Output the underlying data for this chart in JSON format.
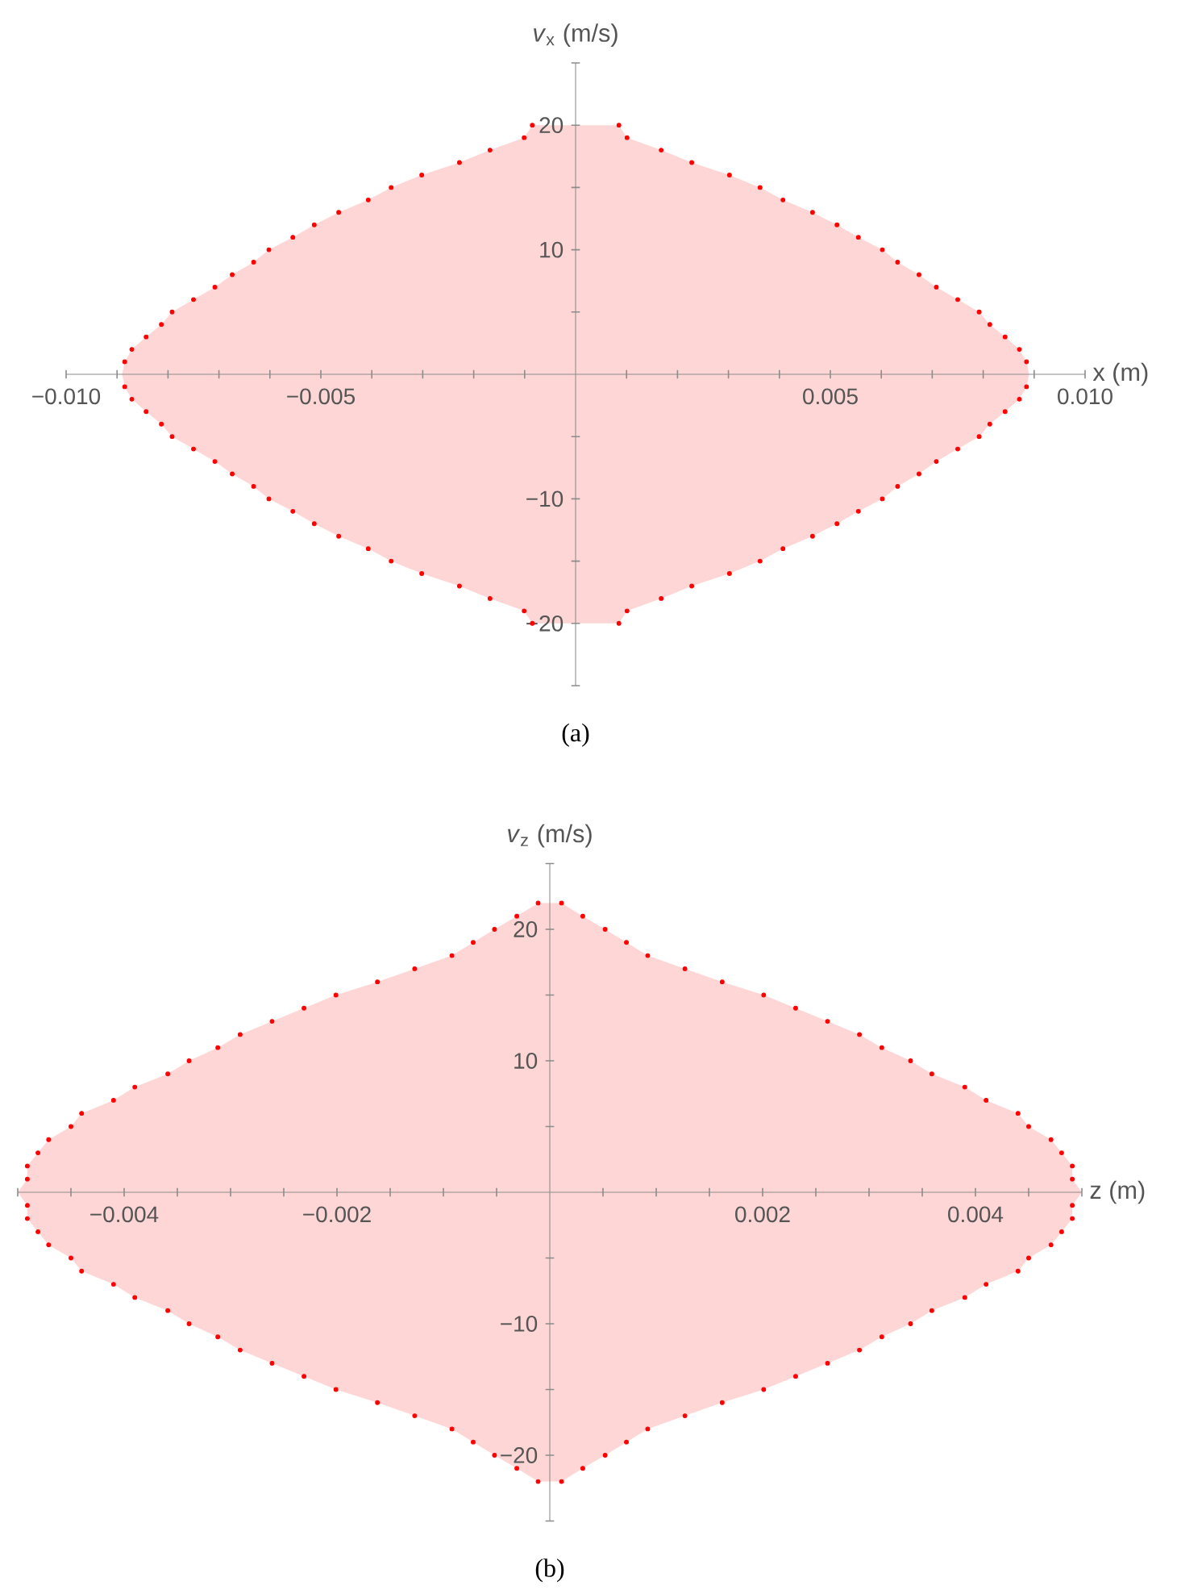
{
  "chart_data": [
    {
      "type": "scatter",
      "title": "(a)",
      "xlabel": "x (m)",
      "ylabel": "*v*$_{x}$ (m/s)",
      "xlim": [
        -0.01,
        0.01
      ],
      "ylim": [
        -25,
        25
      ],
      "xticks": [
        {
          "value": -0.01,
          "label": "−0.010"
        },
        {
          "value": -0.009,
          "label": null
        },
        {
          "value": -0.008,
          "label": null
        },
        {
          "value": -0.007,
          "label": null
        },
        {
          "value": -0.006,
          "label": null
        },
        {
          "value": -0.005,
          "label": "−0.005"
        },
        {
          "value": -0.004,
          "label": null
        },
        {
          "value": -0.003,
          "label": null
        },
        {
          "value": -0.002,
          "label": null
        },
        {
          "value": -0.001,
          "label": null
        },
        {
          "value": 0.001,
          "label": null
        },
        {
          "value": 0.002,
          "label": null
        },
        {
          "value": 0.003,
          "label": null
        },
        {
          "value": 0.004,
          "label": null
        },
        0.005,
        {
          "value": 0.006,
          "label": null
        },
        {
          "value": 0.007,
          "label": null
        },
        {
          "value": 0.008,
          "label": null
        },
        {
          "value": 0.009,
          "label": null
        },
        {
          "value": 0.01,
          "label": "0.010"
        }
      ],
      "yticks": [
        {
          "value": -25,
          "label": null
        },
        {
          "value": -20,
          "label": "−20"
        },
        {
          "value": -15,
          "label": null
        },
        {
          "value": -10,
          "label": "−10"
        },
        {
          "value": -5,
          "label": null
        },
        {
          "value": 5,
          "label": null
        },
        10,
        {
          "value": 15,
          "label": null
        },
        20,
        {
          "value": 25,
          "label": null
        }
      ],
      "series": [
        {
          "type": "area",
          "color": "#ffd6d6",
          "x": [
            -0.0089,
            -0.00885,
            -0.00871,
            -0.00843,
            -0.00813,
            -0.00792,
            -0.0075,
            -0.00708,
            -0.00674,
            -0.00632,
            -0.00602,
            -0.00555,
            -0.00513,
            -0.00465,
            -0.00407,
            -0.00362,
            -0.00302,
            -0.00228,
            -0.00168,
            -0.00101,
            -0.00085,
            0.00085,
            0.00101,
            0.00168,
            0.00228,
            0.00302,
            0.00362,
            0.00407,
            0.00465,
            0.00513,
            0.00555,
            0.00602,
            0.00632,
            0.00674,
            0.00708,
            0.0075,
            0.00792,
            0.00813,
            0.00843,
            0.00871,
            0.00885,
            0.0089
          ],
          "values": [
            0,
            1,
            2,
            3,
            4,
            5,
            6,
            7,
            8,
            9,
            10,
            11,
            12,
            13,
            14,
            15,
            16,
            17,
            18,
            19,
            20,
            20,
            19,
            18,
            17,
            16,
            15,
            14,
            13,
            12,
            11,
            10,
            9,
            8,
            7,
            6,
            5,
            4,
            3,
            2,
            1,
            0
          ]
        },
        {
          "type": "area",
          "color": "#ffd6d6",
          "x": [
            -0.0089,
            -0.00885,
            -0.00871,
            -0.00843,
            -0.00813,
            -0.00792,
            -0.0075,
            -0.00708,
            -0.00674,
            -0.00632,
            -0.00602,
            -0.00555,
            -0.00513,
            -0.00465,
            -0.00407,
            -0.00362,
            -0.00302,
            -0.00228,
            -0.00168,
            -0.00101,
            -0.00085,
            0.00085,
            0.00101,
            0.00168,
            0.00228,
            0.00302,
            0.00362,
            0.00407,
            0.00465,
            0.00513,
            0.00555,
            0.00602,
            0.00632,
            0.00674,
            0.00708,
            0.0075,
            0.00792,
            0.00813,
            0.00843,
            0.00871,
            0.00885,
            0.0089
          ],
          "values": [
            0,
            -1,
            -2,
            -3,
            -4,
            -5,
            -6,
            -7,
            -8,
            -9,
            -10,
            -11,
            -12,
            -13,
            -14,
            -15,
            -16,
            -17,
            -18,
            -19,
            -20,
            -20,
            -19,
            -18,
            -17,
            -16,
            -15,
            -14,
            -13,
            -12,
            -11,
            -10,
            -9,
            -8,
            -7,
            -6,
            -5,
            -4,
            -3,
            -2,
            -1,
            0
          ]
        },
        {
          "color": "#ff0000",
          "marker": "circle",
          "x": [
            -0.00885,
            -0.00871,
            -0.00843,
            -0.00813,
            -0.00792,
            -0.0075,
            -0.00708,
            -0.00674,
            -0.00632,
            -0.00602,
            -0.00555,
            -0.00513,
            -0.00465,
            -0.00407,
            -0.00362,
            -0.00302,
            -0.00228,
            -0.00168,
            -0.00101,
            -0.00085,
            0.00885,
            0.00871,
            0.00843,
            0.00813,
            0.00792,
            0.0075,
            0.00708,
            0.00674,
            0.00632,
            0.00602,
            0.00555,
            0.00513,
            0.00465,
            0.00407,
            0.00362,
            0.00302,
            0.00228,
            0.00168,
            0.00101,
            0.00085,
            -0.00885,
            -0.00871,
            -0.00843,
            -0.00813,
            -0.00792,
            -0.0075,
            -0.00708,
            -0.00674,
            -0.00632,
            -0.00602,
            -0.00555,
            -0.00513,
            -0.00465,
            -0.00407,
            -0.00362,
            -0.00302,
            -0.00228,
            -0.00168,
            -0.00101,
            -0.00085,
            0.00885,
            0.00871,
            0.00843,
            0.00813,
            0.00792,
            0.0075,
            0.00708,
            0.00674,
            0.00632,
            0.00602,
            0.00555,
            0.00513,
            0.00465,
            0.00407,
            0.00362,
            0.00302,
            0.00228,
            0.00168,
            0.00101,
            0.00085
          ],
          "values": [
            1,
            2,
            3,
            4,
            5,
            6,
            7,
            8,
            9,
            10,
            11,
            12,
            13,
            14,
            15,
            16,
            17,
            18,
            19,
            20,
            1,
            2,
            3,
            4,
            5,
            6,
            7,
            8,
            9,
            10,
            11,
            12,
            13,
            14,
            15,
            16,
            17,
            18,
            19,
            20,
            -1,
            -2,
            -3,
            -4,
            -5,
            -6,
            -7,
            -8,
            -9,
            -10,
            -11,
            -12,
            -13,
            -14,
            -15,
            -16,
            -17,
            -18,
            -19,
            -20,
            -1,
            -2,
            -3,
            -4,
            -5,
            -6,
            -7,
            -8,
            -9,
            -10,
            -11,
            -12,
            -13,
            -14,
            -15,
            -16,
            -17,
            -18,
            -19,
            -20
          ]
        }
      ]
    },
    {
      "type": "scatter",
      "title": "(b)",
      "xlabel": "z (m)",
      "ylabel": "*v*$_{z}$ (m/s)",
      "xlim": [
        -0.005,
        0.005
      ],
      "ylim": [
        -25,
        25
      ],
      "xticks": [
        {
          "value": -0.005,
          "label": null
        },
        {
          "value": -0.0045,
          "label": null
        },
        {
          "value": -0.004,
          "label": "−0.004"
        },
        {
          "value": -0.0035,
          "label": null
        },
        {
          "value": -0.003,
          "label": null
        },
        {
          "value": -0.0025,
          "label": null
        },
        {
          "value": -0.002,
          "label": "−0.002"
        },
        {
          "value": -0.0015,
          "label": null
        },
        {
          "value": -0.001,
          "label": null
        },
        {
          "value": -0.0005,
          "label": null
        },
        {
          "value": 0.0005,
          "label": null
        },
        {
          "value": 0.001,
          "label": null
        },
        {
          "value": 0.0015,
          "label": null
        },
        0.002,
        {
          "value": 0.0025,
          "label": null
        },
        {
          "value": 0.003,
          "label": null
        },
        {
          "value": 0.0035,
          "label": null
        },
        0.004,
        {
          "value": 0.0045,
          "label": null
        },
        {
          "value": 0.005,
          "label": null
        }
      ],
      "yticks": [
        {
          "value": -25,
          "label": null
        },
        {
          "value": -20,
          "label": "−20"
        },
        {
          "value": -15,
          "label": null
        },
        {
          "value": -10,
          "label": "−10"
        },
        {
          "value": -5,
          "label": null
        },
        {
          "value": 5,
          "label": null
        },
        10,
        {
          "value": 15,
          "label": null
        },
        20,
        {
          "value": 25,
          "label": null
        }
      ],
      "series": [
        {
          "type": "area",
          "color": "#ffd6d6",
          "x": [
            -0.005,
            -0.00491,
            -0.00491,
            -0.00481,
            -0.00471,
            -0.0045,
            -0.0044,
            -0.0041,
            -0.0039,
            -0.00359,
            -0.00339,
            -0.00312,
            -0.00291,
            -0.00261,
            -0.00231,
            -0.00201,
            -0.00162,
            -0.00127,
            -0.00092,
            -0.00072,
            -0.00052,
            -0.00031,
            -0.00011,
            0.00011,
            0.00031,
            0.00052,
            0.00072,
            0.00092,
            0.00127,
            0.00162,
            0.00201,
            0.00231,
            0.00261,
            0.00291,
            0.00312,
            0.00339,
            0.00359,
            0.0039,
            0.0041,
            0.0044,
            0.0045,
            0.00471,
            0.00481,
            0.00491,
            0.00491,
            0.005
          ],
          "values": [
            0,
            1,
            2,
            3,
            4,
            5,
            6,
            7,
            8,
            9,
            10,
            11,
            12,
            13,
            14,
            15,
            16,
            17,
            18,
            19,
            20,
            21,
            22,
            22,
            21,
            20,
            19,
            18,
            17,
            16,
            15,
            14,
            13,
            12,
            11,
            10,
            9,
            8,
            7,
            6,
            5,
            4,
            3,
            2,
            1,
            0
          ]
        },
        {
          "type": "area",
          "color": "#ffd6d6",
          "x": [
            -0.005,
            -0.00491,
            -0.00491,
            -0.00481,
            -0.00471,
            -0.0045,
            -0.0044,
            -0.0041,
            -0.0039,
            -0.00359,
            -0.00339,
            -0.00312,
            -0.00291,
            -0.00261,
            -0.00231,
            -0.00201,
            -0.00162,
            -0.00127,
            -0.00092,
            -0.00072,
            -0.00052,
            -0.00031,
            -0.00011,
            0.00011,
            0.00031,
            0.00052,
            0.00072,
            0.00092,
            0.00127,
            0.00162,
            0.00201,
            0.00231,
            0.00261,
            0.00291,
            0.00312,
            0.00339,
            0.00359,
            0.0039,
            0.0041,
            0.0044,
            0.0045,
            0.00471,
            0.00481,
            0.00491,
            0.00491,
            0.005
          ],
          "values": [
            0,
            -1,
            -2,
            -3,
            -4,
            -5,
            -6,
            -7,
            -8,
            -9,
            -10,
            -11,
            -12,
            -13,
            -14,
            -15,
            -16,
            -17,
            -18,
            -19,
            -20,
            -21,
            -22,
            -22,
            -21,
            -20,
            -19,
            -18,
            -17,
            -16,
            -15,
            -14,
            -13,
            -12,
            -11,
            -10,
            -9,
            -8,
            -7,
            -6,
            -5,
            -4,
            -3,
            -2,
            -1,
            0
          ]
        },
        {
          "color": "#ff0000",
          "marker": "circle",
          "x": [
            -0.00491,
            -0.00491,
            -0.00481,
            -0.00471,
            -0.0045,
            -0.0044,
            -0.0041,
            -0.0039,
            -0.00359,
            -0.00339,
            -0.00312,
            -0.00291,
            -0.00261,
            -0.00231,
            -0.00201,
            -0.00162,
            -0.00127,
            -0.00092,
            -0.00072,
            -0.00052,
            -0.00031,
            -0.00011,
            0.00491,
            0.00491,
            0.00481,
            0.00471,
            0.0045,
            0.0044,
            0.0041,
            0.0039,
            0.00359,
            0.00339,
            0.00312,
            0.00291,
            0.00261,
            0.00231,
            0.00201,
            0.00162,
            0.00127,
            0.00092,
            0.00072,
            0.00052,
            0.00031,
            0.00011,
            -0.00491,
            -0.00491,
            -0.00481,
            -0.00471,
            -0.0045,
            -0.0044,
            -0.0041,
            -0.0039,
            -0.00359,
            -0.00339,
            -0.00312,
            -0.00291,
            -0.00261,
            -0.00231,
            -0.00201,
            -0.00162,
            -0.00127,
            -0.00092,
            -0.00072,
            -0.00052,
            -0.00031,
            -0.00011,
            0.00491,
            0.00491,
            0.00481,
            0.00471,
            0.0045,
            0.0044,
            0.0041,
            0.0039,
            0.00359,
            0.00339,
            0.00312,
            0.00291,
            0.00261,
            0.00231,
            0.00201,
            0.00162,
            0.00127,
            0.00092,
            0.00072,
            0.00052,
            0.00031,
            0.00011
          ],
          "values": [
            1,
            2,
            3,
            4,
            5,
            6,
            7,
            8,
            9,
            10,
            11,
            12,
            13,
            14,
            15,
            16,
            17,
            18,
            19,
            20,
            21,
            22,
            1,
            2,
            3,
            4,
            5,
            6,
            7,
            8,
            9,
            10,
            11,
            12,
            13,
            14,
            15,
            16,
            17,
            18,
            19,
            20,
            21,
            22,
            -1,
            -2,
            -3,
            -4,
            -5,
            -6,
            -7,
            -8,
            -9,
            -10,
            -11,
            -12,
            -13,
            -14,
            -15,
            -16,
            -17,
            -18,
            -19,
            -20,
            -21,
            -22,
            -1,
            -2,
            -3,
            -4,
            -5,
            -6,
            -7,
            -8,
            -9,
            -10,
            -11,
            -12,
            -13,
            -14,
            -15,
            -16,
            -17,
            -18,
            -19,
            -20,
            -21,
            -22
          ]
        }
      ]
    }
  ]
}
